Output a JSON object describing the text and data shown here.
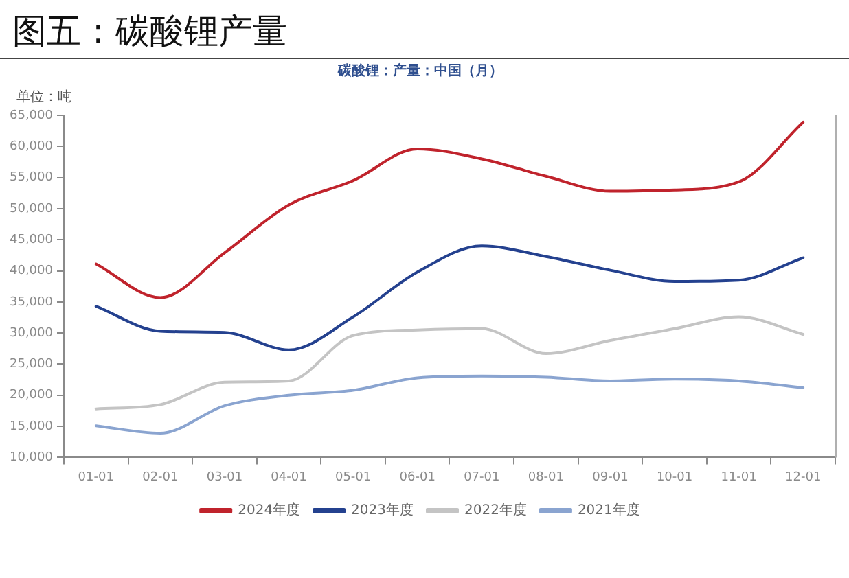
{
  "chart_data": {
    "type": "line",
    "title": "图五：碳酸锂产量",
    "subtitle": "碳酸锂：产量：中国（月）",
    "ylabel": "单位：吨",
    "categories": [
      "01-01",
      "02-01",
      "03-01",
      "04-01",
      "05-01",
      "06-01",
      "07-01",
      "08-01",
      "09-01",
      "10-01",
      "11-01",
      "12-01"
    ],
    "series": [
      {
        "name": "2024年度",
        "color": "#c0232c",
        "values": [
          41100,
          35700,
          42900,
          50600,
          54500,
          59600,
          58000,
          55200,
          52800,
          53000,
          54300,
          63900
        ]
      },
      {
        "name": "2023年度",
        "color": "#24418f",
        "values": [
          34300,
          30300,
          30100,
          27300,
          32600,
          39800,
          44000,
          42300,
          40100,
          38300,
          38500,
          42100
        ]
      },
      {
        "name": "2022年度",
        "color": "#c4c4c4",
        "values": [
          17800,
          18500,
          22100,
          22300,
          29600,
          30500,
          30700,
          26700,
          28800,
          30700,
          32600,
          29800
        ]
      },
      {
        "name": "2021年度",
        "color": "#8aa4d0",
        "values": [
          15100,
          13900,
          18300,
          20000,
          20800,
          22800,
          23100,
          22900,
          22300,
          22600,
          22300,
          21200
        ]
      }
    ],
    "ylim": [
      10000,
      65000
    ],
    "yticks": [
      {
        "value": 10000,
        "label": "10,000"
      },
      {
        "value": 15000,
        "label": "15,000"
      },
      {
        "value": 20000,
        "label": "20,000"
      },
      {
        "value": 25000,
        "label": "25,000"
      },
      {
        "value": 30000,
        "label": "30,000"
      },
      {
        "value": 35000,
        "label": "35,000"
      },
      {
        "value": 40000,
        "label": "40,000"
      },
      {
        "value": 45000,
        "label": "45,000"
      },
      {
        "value": 50000,
        "label": "50,000"
      },
      {
        "value": 55000,
        "label": "55,000"
      },
      {
        "value": 60000,
        "label": "60,000"
      },
      {
        "value": 65000,
        "label": "65,000"
      }
    ],
    "grid": false,
    "legend": "bottom",
    "marker": "none"
  }
}
